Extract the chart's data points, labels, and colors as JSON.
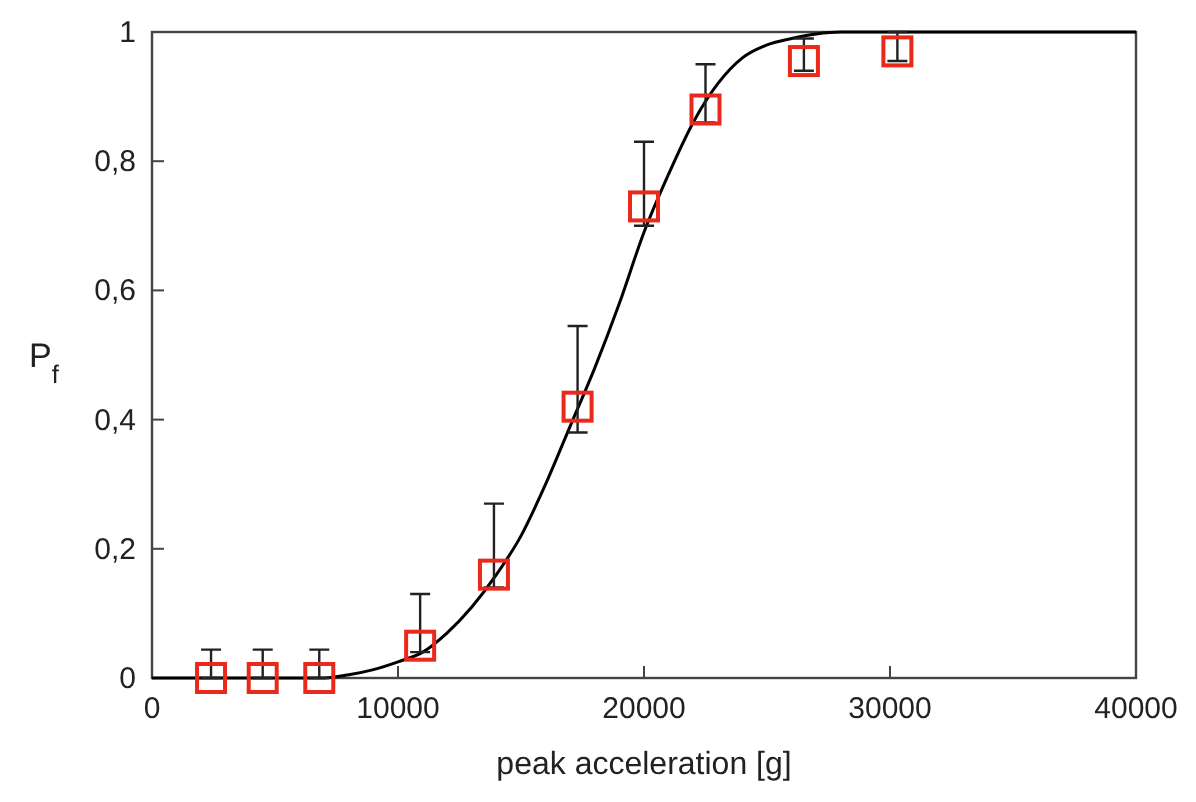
{
  "chart_data": {
    "type": "scatter",
    "xlabel": "peak acceleration [g]",
    "ylabel": "P$_{f}$",
    "xlim": [
      0,
      40000
    ],
    "xticks": [
      0,
      10000,
      20000,
      30000,
      40000
    ],
    "ylim": [
      0,
      1
    ],
    "yticks": [
      0,
      {
        "value": 0.2,
        "label": "0,2"
      },
      {
        "value": 0.4,
        "label": "0,4"
      },
      {
        "value": 0.6,
        "label": "0,6"
      },
      {
        "value": 0.8,
        "label": "0,8"
      },
      1
    ],
    "grid": false,
    "series": [
      {
        "color": "#e8291c",
        "marker": "square",
        "x": [
          2400,
          4500,
          6800,
          10900,
          13900,
          17300,
          20000,
          22500,
          26500,
          30300
        ],
        "values": [
          0,
          0,
          0,
          0.05,
          0.16,
          0.42,
          0.73,
          0.88,
          0.955,
          0.97
        ],
        "errors": [
          [
            0,
            0.044
          ],
          [
            0,
            0.044
          ],
          [
            0,
            0.044
          ],
          [
            0.04,
            0.13
          ],
          [
            0.14,
            0.27
          ],
          [
            0.38,
            0.545
          ],
          [
            0.7,
            0.83
          ],
          [
            0.86,
            0.95
          ],
          [
            0.94,
            0.99
          ],
          [
            0.955,
            1
          ]
        ]
      },
      {
        "type": "line",
        "color": "#000000",
        "line_style": "solid",
        "x": [
          0,
          7000,
          8000,
          9000,
          10000,
          11000,
          12000,
          13000,
          14000,
          15000,
          16000,
          17000,
          18000,
          19000,
          20000,
          21000,
          22000,
          23000,
          24000,
          25000,
          26000,
          27000,
          28000,
          40000
        ],
        "values": [
          0,
          0,
          0.005,
          0.013,
          0.025,
          0.04,
          0.07,
          0.11,
          0.16,
          0.22,
          0.3,
          0.39,
          0.48,
          0.58,
          0.69,
          0.78,
          0.86,
          0.92,
          0.96,
          0.98,
          0.99,
          0.997,
          1,
          1
        ]
      }
    ]
  }
}
